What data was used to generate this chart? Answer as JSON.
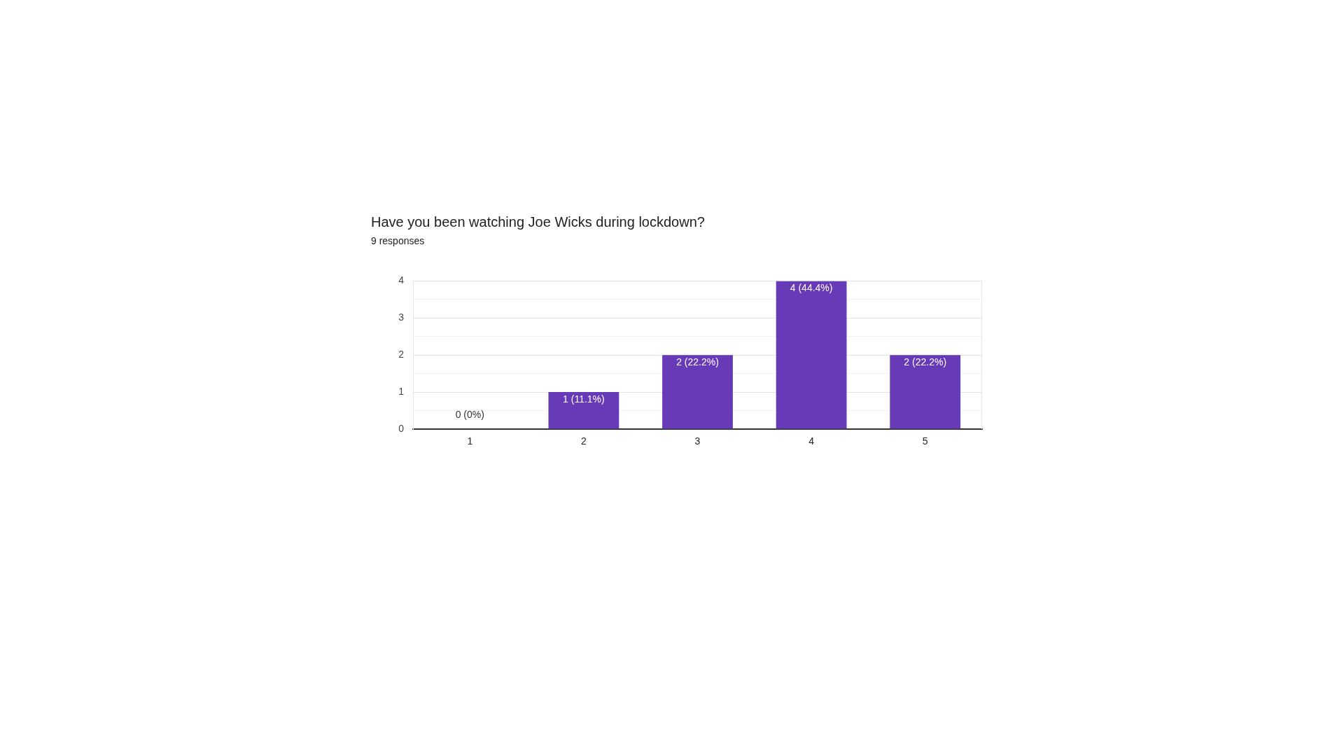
{
  "chart_data": {
    "type": "bar",
    "title": "Have you been watching Joe Wicks during lockdown?",
    "subtitle": "9 responses",
    "categories": [
      "1",
      "2",
      "3",
      "4",
      "5"
    ],
    "values": [
      0,
      1,
      2,
      4,
      2
    ],
    "color": "#673ab7",
    "value_labels": [
      "0 (0%)",
      "1 (11.1%)",
      "2 (22.2%)",
      "4 (44.4%)",
      "2 (22.2%)"
    ],
    "ylim": [
      0,
      4
    ],
    "yticks": [
      0,
      {
        "value": 0.5,
        "label": null
      },
      1,
      {
        "value": 1.5,
        "label": null
      },
      2,
      {
        "value": 2.5,
        "label": null
      },
      3,
      {
        "value": 3.5,
        "label": null
      },
      4
    ],
    "grid": "y",
    "legend": false
  }
}
